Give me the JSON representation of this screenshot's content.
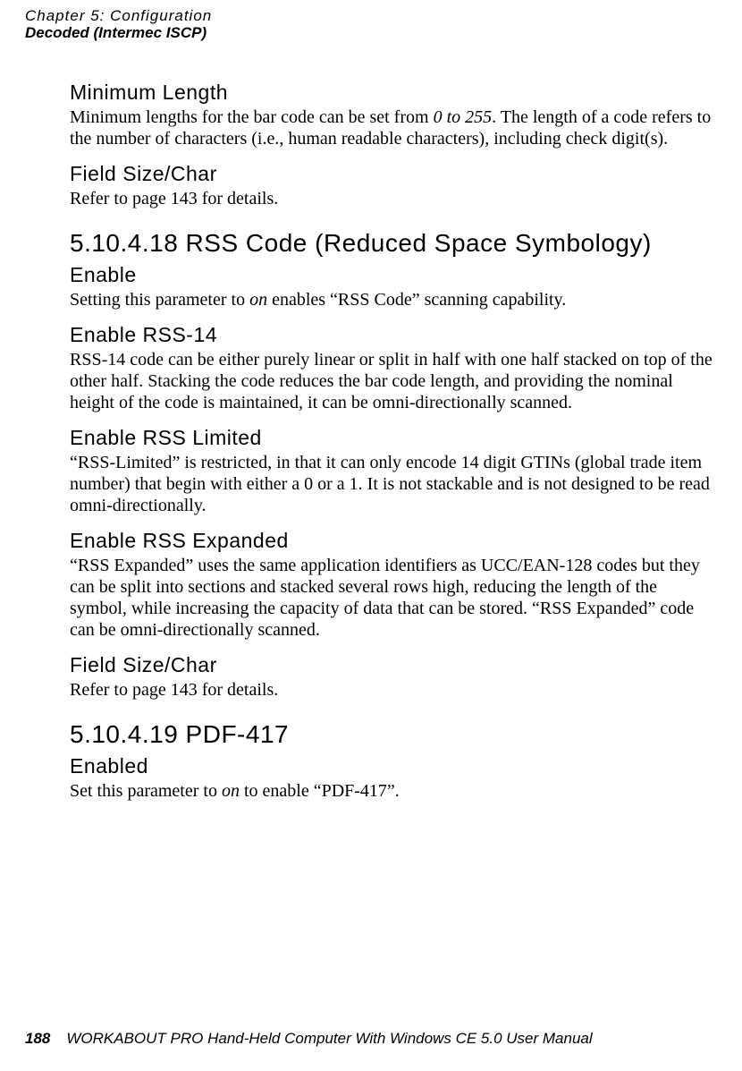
{
  "header": {
    "line1": "Chapter 5: Configuration",
    "line2": "Decoded (Intermec ISCP)"
  },
  "sections": {
    "minLength": {
      "title": "Minimum Length",
      "body_pre": "Minimum lengths for the bar code can be set from ",
      "body_em": "0 to 255",
      "body_post": ". The length of a code refers to the number of characters (i.e., human readable characters), including check digit(s)."
    },
    "fieldSize1": {
      "title": "Field Size/Char",
      "body": "Refer to page 143 for details."
    },
    "rssHeading": "5.10.4.18  RSS Code (Reduced Space Symbology)",
    "enable": {
      "title": "Enable",
      "body_pre": "Setting this parameter to ",
      "body_em": "on",
      "body_post": " enables “RSS Code” scanning capability."
    },
    "rss14": {
      "title": "Enable RSS-14",
      "body": "RSS-14 code can be either purely linear or split in half with one half stacked on top of the other half. Stacking the code reduces the bar code length, and providing the nominal height of the code is maintained, it can be omni-directionally scanned."
    },
    "rssLimited": {
      "title": "Enable RSS Limited",
      "body": "“RSS-Limited” is restricted, in that it can only encode 14 digit GTINs (global trade item number) that begin with either a 0 or a 1. It is not stackable and is not designed to be read omni-directionally."
    },
    "rssExpanded": {
      "title": "Enable RSS Expanded",
      "body": "“RSS Expanded” uses the same application identifiers as UCC/EAN-128 codes but they can be split into sections and stacked several rows high, reducing the length of the symbol, while increasing the capacity of data that can be stored. “RSS Expanded” code can be omni-directionally scanned."
    },
    "fieldSize2": {
      "title": "Field Size/Char",
      "body": "Refer to page 143 for details."
    },
    "pdfHeading": "5.10.4.19  PDF-417",
    "enabled": {
      "title": "Enabled",
      "body_pre": "Set this parameter to ",
      "body_em": "on",
      "body_post": " to enable “PDF-417”."
    }
  },
  "footer": {
    "page": "188",
    "text": "WORKABOUT PRO Hand-Held Computer With Windows CE 5.0 User Manual"
  }
}
